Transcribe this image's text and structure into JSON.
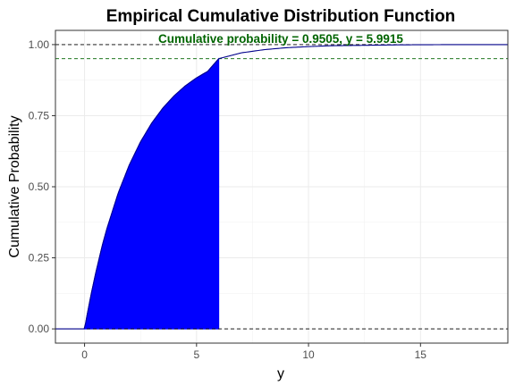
{
  "chart_data": {
    "type": "line",
    "title": "Empirical Cumulative Distribution Function",
    "xlabel": "y",
    "ylabel": "Cumulative Probability",
    "xlim": [
      -1.3,
      18.9
    ],
    "ylim": [
      -0.05,
      1.05
    ],
    "x_ticks": [
      0,
      5,
      10,
      15
    ],
    "x_tick_labels": [
      "0",
      "5",
      "10",
      "15"
    ],
    "y_ticks": [
      0.0,
      0.25,
      0.5,
      0.75,
      1.0
    ],
    "y_tick_labels": [
      "0.00",
      "0.25",
      "0.50",
      "0.75",
      "1.00"
    ],
    "grid": true,
    "series": [
      {
        "type": "ecdf-step",
        "color": "#00008b",
        "x": [
          -1.3,
          0.0,
          0.1,
          0.3,
          0.5,
          0.8,
          1.0,
          1.5,
          2.0,
          2.5,
          3.0,
          3.5,
          4.0,
          4.5,
          5.0,
          5.5,
          5.9915,
          7.0,
          8.0,
          9.0,
          10.0,
          11.0,
          12.0,
          13.0,
          14.0,
          15.0,
          16.0,
          17.5,
          18.9
        ],
        "y": [
          0.0,
          0.0,
          0.043,
          0.124,
          0.197,
          0.296,
          0.353,
          0.477,
          0.577,
          0.658,
          0.724,
          0.777,
          0.82,
          0.855,
          0.883,
          0.906,
          0.9505,
          0.971,
          0.982,
          0.989,
          0.993,
          0.996,
          0.997,
          0.998,
          0.999,
          0.9995,
          0.9998,
          1.0,
          1.0
        ]
      }
    ],
    "shaded_area": {
      "color": "#0000ff",
      "x_from": 0.0,
      "x_to": 5.9915
    },
    "reference_lines": {
      "horizontal": [
        0.0,
        1.0,
        0.9505
      ],
      "colors": [
        "#000000",
        "#000000",
        "#006400"
      ]
    },
    "annotation": {
      "text": "Cumulative probability = 0.9505, y = 5.9915",
      "color": "#006400"
    }
  }
}
